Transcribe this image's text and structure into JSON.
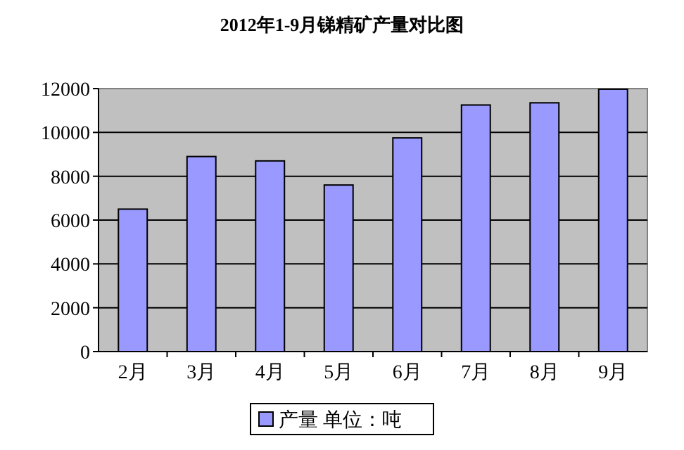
{
  "chart_data": {
    "type": "bar",
    "title": "2012年1-9月锑精矿产量对比图",
    "categories": [
      "2月",
      "3月",
      "4月",
      "5月",
      "6月",
      "7月",
      "8月",
      "9月"
    ],
    "series": [
      {
        "name": "产量 单位：吨",
        "color": "#9999ff",
        "values": [
          6500,
          8900,
          8700,
          7600,
          9750,
          11250,
          11350,
          11970
        ]
      }
    ],
    "ylim": [
      0,
      12000
    ],
    "yticks": [
      0,
      2000,
      4000,
      6000,
      8000,
      10000,
      12000
    ],
    "grid": "y",
    "legend": "bottom"
  }
}
